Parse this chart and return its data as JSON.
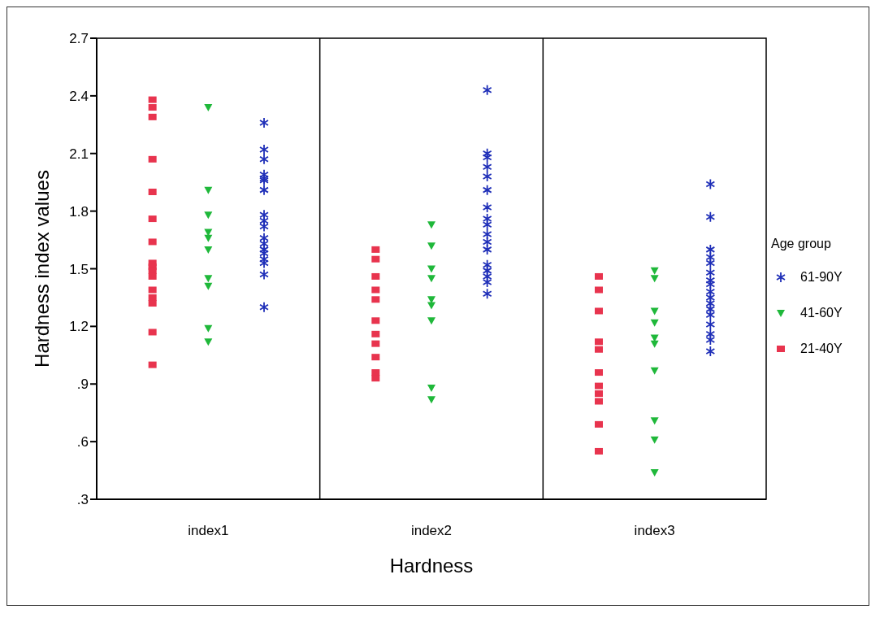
{
  "chart_data": {
    "type": "scatter",
    "xlabel": "Hardness",
    "ylabel": "Hardness index values",
    "legend_title": "Age group",
    "legend": "right",
    "categories": [
      "index1",
      "index2",
      "index3"
    ],
    "ylim": [
      0.3,
      2.7
    ],
    "yticks": [
      {
        "value": 0.3,
        "label": ".3"
      },
      {
        "value": 0.6,
        "label": ".6"
      },
      {
        "value": 0.9,
        "label": ".9"
      },
      1.2,
      1.5,
      1.8,
      2.1,
      2.4,
      2.7
    ],
    "series": [
      {
        "name": "61-90Y",
        "color": "#1f2fb8",
        "marker": "cross",
        "x": [
          "index1",
          "index1",
          "index1",
          "index1",
          "index1",
          "index1",
          "index1",
          "index1",
          "index1",
          "index1",
          "index1",
          "index1",
          "index1",
          "index1",
          "index1",
          "index1",
          "index1",
          "index1",
          "index2",
          "index2",
          "index2",
          "index2",
          "index2",
          "index2",
          "index2",
          "index2",
          "index2",
          "index2",
          "index2",
          "index2",
          "index2",
          "index2",
          "index2",
          "index2",
          "index2",
          "index3",
          "index3",
          "index3",
          "index3",
          "index3",
          "index3",
          "index3",
          "index3",
          "index3",
          "index3",
          "index3",
          "index3",
          "index3",
          "index3",
          "index3",
          "index3",
          "index3"
        ],
        "values": [
          2.26,
          2.12,
          2.07,
          1.99,
          1.97,
          1.96,
          1.91,
          1.78,
          1.75,
          1.72,
          1.66,
          1.63,
          1.6,
          1.58,
          1.55,
          1.53,
          1.47,
          1.3,
          2.43,
          2.1,
          2.08,
          2.03,
          1.98,
          1.91,
          1.82,
          1.76,
          1.73,
          1.68,
          1.64,
          1.6,
          1.52,
          1.49,
          1.46,
          1.43,
          1.37,
          1.94,
          1.77,
          1.6,
          1.56,
          1.53,
          1.48,
          1.44,
          1.42,
          1.38,
          1.35,
          1.32,
          1.29,
          1.26,
          1.21,
          1.16,
          1.13,
          1.07
        ]
      },
      {
        "name": "41-60Y",
        "color": "#1fb83a",
        "marker": "triangle",
        "x": [
          "index1",
          "index1",
          "index1",
          "index1",
          "index1",
          "index1",
          "index1",
          "index1",
          "index1",
          "index1",
          "index2",
          "index2",
          "index2",
          "index2",
          "index2",
          "index2",
          "index2",
          "index2",
          "index2",
          "index3",
          "index3",
          "index3",
          "index3",
          "index3",
          "index3",
          "index3",
          "index3",
          "index3",
          "index3"
        ],
        "values": [
          2.34,
          1.91,
          1.78,
          1.69,
          1.66,
          1.6,
          1.45,
          1.41,
          1.19,
          1.12,
          1.73,
          1.62,
          1.5,
          1.45,
          1.34,
          1.31,
          1.23,
          0.88,
          0.82,
          1.49,
          1.45,
          1.28,
          1.22,
          1.14,
          1.11,
          0.97,
          0.71,
          0.61,
          0.44
        ]
      },
      {
        "name": "21-40Y",
        "color": "#e8344e",
        "marker": "square",
        "x": [
          "index1",
          "index1",
          "index1",
          "index1",
          "index1",
          "index1",
          "index1",
          "index1",
          "index1",
          "index1",
          "index1",
          "index1",
          "index1",
          "index1",
          "index1",
          "index1",
          "index2",
          "index2",
          "index2",
          "index2",
          "index2",
          "index2",
          "index2",
          "index2",
          "index2",
          "index2",
          "index2",
          "index3",
          "index3",
          "index3",
          "index3",
          "index3",
          "index3",
          "index3",
          "index3",
          "index3",
          "index3",
          "index3"
        ],
        "values": [
          2.38,
          2.34,
          2.29,
          2.07,
          1.9,
          1.76,
          1.64,
          1.53,
          1.51,
          1.49,
          1.46,
          1.39,
          1.35,
          1.32,
          1.17,
          1.0,
          1.6,
          1.55,
          1.46,
          1.39,
          1.34,
          1.23,
          1.16,
          1.11,
          1.04,
          0.96,
          0.93,
          1.46,
          1.39,
          1.28,
          1.12,
          1.08,
          0.96,
          0.89,
          0.85,
          0.81,
          0.69,
          0.55
        ]
      }
    ]
  }
}
